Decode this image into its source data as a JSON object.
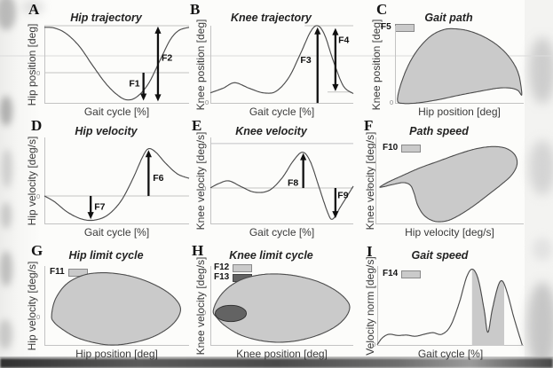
{
  "figure_name": "gait-feature-definition-figure",
  "colors": {
    "fill_light": "#cacaca",
    "fill_dark": "#636363",
    "curve": "#4c4c4c",
    "axis": "#c3c3c3",
    "arrow": "#101010",
    "text": "#3a3a3a"
  },
  "chart_data": {
    "type": "multi-panel-line",
    "grid": "3x3",
    "panels": [
      {
        "id": "A",
        "title": "Hip trajectory",
        "xlabel": "Gait cycle [%]",
        "ylabel": "Hip position [deg]",
        "type": "line",
        "origin": {
          "text": "0",
          "side": "left",
          "y": 0.602
        },
        "lines": [
          [
            0,
            0,
            1,
            0
          ],
          [
            0,
            0.602,
            1,
            0.602
          ]
        ],
        "curve": [
          [
            0,
            0.02
          ],
          [
            0.07,
            0.03
          ],
          [
            0.15,
            0.1
          ],
          [
            0.24,
            0.26
          ],
          [
            0.33,
            0.5
          ],
          [
            0.42,
            0.73
          ],
          [
            0.5,
            0.88
          ],
          [
            0.57,
            0.95
          ],
          [
            0.64,
            0.91
          ],
          [
            0.72,
            0.74
          ],
          [
            0.8,
            0.44
          ],
          [
            0.87,
            0.18
          ],
          [
            0.93,
            0.06
          ],
          [
            1,
            0.02
          ]
        ],
        "annotations": [
          {
            "label": "F1",
            "x": 0.685,
            "y1": 0.602,
            "y2": 0.96,
            "heads": "end",
            "lx": 0.585,
            "ly": 0.78
          },
          {
            "label": "F2",
            "x": 0.785,
            "y1": 0.01,
            "y2": 0.97,
            "heads": "both",
            "lx": 0.81,
            "ly": 0.45
          }
        ],
        "legend": []
      },
      {
        "id": "B",
        "title": "Knee trajectory",
        "xlabel": "Gait cycle [%]",
        "ylabel": "Knee position [deg]",
        "type": "line",
        "origin": {
          "text": "0",
          "side": "bottom"
        },
        "lines": [
          [
            0.66,
            0,
            1,
            0
          ],
          [
            0.82,
            0.85,
            0.99,
            0.85
          ]
        ],
        "curve": [
          [
            0,
            0.86
          ],
          [
            0.09,
            0.8
          ],
          [
            0.17,
            0.73
          ],
          [
            0.27,
            0.8
          ],
          [
            0.37,
            0.86
          ],
          [
            0.46,
            0.84
          ],
          [
            0.55,
            0.66
          ],
          [
            0.63,
            0.36
          ],
          [
            0.7,
            0.08
          ],
          [
            0.75,
            0.0
          ],
          [
            0.8,
            0.12
          ],
          [
            0.86,
            0.45
          ],
          [
            0.93,
            0.77
          ],
          [
            1,
            0.87
          ]
        ],
        "annotations": [
          {
            "label": "F3",
            "x": 0.75,
            "y1": 0.99,
            "y2": 0.02,
            "heads": "end",
            "lx": 0.63,
            "ly": 0.48
          },
          {
            "label": "F4",
            "x": 0.875,
            "y1": 0.03,
            "y2": 0.84,
            "heads": "both",
            "lx": 0.895,
            "ly": 0.22
          }
        ],
        "legend": []
      },
      {
        "id": "C",
        "title": "Gait path",
        "xlabel": "Hip position [deg]",
        "ylabel": "Knee position [deg]",
        "type": "filled-loop",
        "origin": {
          "text": "0",
          "side": "bottom"
        },
        "lines": [],
        "shapes": [
          {
            "kind": "blob",
            "tone": "light",
            "points": [
              [
                0.02,
                0.96
              ],
              [
                0.04,
                0.78
              ],
              [
                0.1,
                0.52
              ],
              [
                0.18,
                0.3
              ],
              [
                0.28,
                0.13
              ],
              [
                0.38,
                0.05
              ],
              [
                0.47,
                0.04
              ],
              [
                0.58,
                0.07
              ],
              [
                0.7,
                0.15
              ],
              [
                0.81,
                0.27
              ],
              [
                0.9,
                0.43
              ],
              [
                0.96,
                0.62
              ],
              [
                0.985,
                0.88
              ],
              [
                0.955,
                0.83
              ],
              [
                0.9,
                0.8
              ],
              [
                0.8,
                0.8
              ],
              [
                0.66,
                0.84
              ],
              [
                0.5,
                0.89
              ],
              [
                0.33,
                0.95
              ],
              [
                0.17,
                0.99
              ],
              [
                0.06,
                0.995
              ]
            ]
          }
        ],
        "annotations": [],
        "legend": [
          {
            "label": "F5",
            "tone": "light"
          }
        ]
      },
      {
        "id": "D",
        "title": "Hip velocity",
        "xlabel": "Gait cycle [%]",
        "ylabel": "Hip velocity [deg/s]",
        "type": "line",
        "origin": {
          "text": "0",
          "side": "left",
          "y": 0.673
        },
        "lines": [
          [
            0,
            0.673,
            1,
            0.673
          ]
        ],
        "curve": [
          [
            0,
            0.673
          ],
          [
            0.07,
            0.74
          ],
          [
            0.16,
            0.86
          ],
          [
            0.26,
            0.94
          ],
          [
            0.35,
            0.95
          ],
          [
            0.44,
            0.89
          ],
          [
            0.53,
            0.73
          ],
          [
            0.61,
            0.48
          ],
          [
            0.68,
            0.22
          ],
          [
            0.72,
            0.13
          ],
          [
            0.77,
            0.17
          ],
          [
            0.84,
            0.3
          ],
          [
            0.92,
            0.42
          ],
          [
            1,
            0.47
          ]
        ],
        "annotations": [
          {
            "label": "F6",
            "x": 0.72,
            "y1": 0.673,
            "y2": 0.145,
            "heads": "end",
            "lx": 0.75,
            "ly": 0.5
          },
          {
            "label": "F7",
            "x": 0.32,
            "y1": 0.673,
            "y2": 0.94,
            "heads": "end",
            "lx": 0.345,
            "ly": 0.83
          }
        ],
        "legend": []
      },
      {
        "id": "E",
        "title": "Knee velocity",
        "xlabel": "Gait cycle [%]",
        "ylabel": "Knee velocity [deg/s]",
        "type": "line",
        "origin": {
          "text": "0",
          "side": "left",
          "y": 0.582
        },
        "lines": [
          [
            0,
            0.07,
            1,
            0.07
          ],
          [
            0,
            0.582,
            1,
            0.582
          ]
        ],
        "curve": [
          [
            0,
            0.58
          ],
          [
            0.06,
            0.53
          ],
          [
            0.13,
            0.5
          ],
          [
            0.22,
            0.57
          ],
          [
            0.31,
            0.63
          ],
          [
            0.41,
            0.61
          ],
          [
            0.5,
            0.47
          ],
          [
            0.58,
            0.27
          ],
          [
            0.645,
            0.17
          ],
          [
            0.7,
            0.28
          ],
          [
            0.76,
            0.57
          ],
          [
            0.82,
            0.86
          ],
          [
            0.855,
            0.94
          ],
          [
            0.91,
            0.8
          ],
          [
            1,
            0.56
          ]
        ],
        "annotations": [
          {
            "label": "F8",
            "x": 0.65,
            "y1": 0.582,
            "y2": 0.18,
            "heads": "end",
            "lx": 0.54,
            "ly": 0.555
          },
          {
            "label": "F9",
            "x": 0.875,
            "y1": 0.582,
            "y2": 0.93,
            "heads": "end",
            "lx": 0.89,
            "ly": 0.7
          }
        ],
        "legend": []
      },
      {
        "id": "F",
        "title": "Path speed",
        "xlabel": "Hip velocity [deg/s]",
        "ylabel": "Knee velocity [deg/s]",
        "type": "filled-loop",
        "origin": {
          "text": "0",
          "side": "left",
          "y": 0.571
        },
        "lines": [],
        "shapes": [
          {
            "kind": "blob",
            "tone": "light",
            "points": [
              [
                0.03,
                0.57
              ],
              [
                0.09,
                0.51
              ],
              [
                0.18,
                0.44
              ],
              [
                0.3,
                0.35
              ],
              [
                0.43,
                0.27
              ],
              [
                0.56,
                0.19
              ],
              [
                0.68,
                0.13
              ],
              [
                0.79,
                0.105
              ],
              [
                0.88,
                0.125
              ],
              [
                0.94,
                0.2
              ],
              [
                0.955,
                0.31
              ],
              [
                0.92,
                0.43
              ],
              [
                0.85,
                0.54
              ],
              [
                0.76,
                0.66
              ],
              [
                0.66,
                0.79
              ],
              [
                0.56,
                0.9
              ],
              [
                0.48,
                0.96
              ],
              [
                0.4,
                0.965
              ],
              [
                0.33,
                0.9
              ],
              [
                0.285,
                0.78
              ],
              [
                0.26,
                0.64
              ],
              [
                0.235,
                0.55
              ],
              [
                0.19,
                0.52
              ],
              [
                0.12,
                0.54
              ],
              [
                0.06,
                0.565
              ]
            ]
          }
        ],
        "annotations": [],
        "legend": [
          {
            "label": "F10",
            "tone": "light"
          }
        ]
      },
      {
        "id": "G",
        "title": "Hip limit cycle",
        "xlabel": "Hip position [deg]",
        "ylabel": "Hip velocity [deg/s]",
        "type": "filled-loop",
        "origin": {
          "text": "0",
          "side": "left",
          "y": 0.633
        },
        "lines": [],
        "shapes": [
          {
            "kind": "blob",
            "tone": "light",
            "points": [
              [
                0.05,
                0.62
              ],
              [
                0.075,
                0.42
              ],
              [
                0.15,
                0.23
              ],
              [
                0.26,
                0.12
              ],
              [
                0.38,
                0.085
              ],
              [
                0.52,
                0.1
              ],
              [
                0.66,
                0.16
              ],
              [
                0.79,
                0.26
              ],
              [
                0.89,
                0.385
              ],
              [
                0.94,
                0.52
              ],
              [
                0.92,
                0.655
              ],
              [
                0.85,
                0.785
              ],
              [
                0.74,
                0.895
              ],
              [
                0.6,
                0.965
              ],
              [
                0.46,
                0.99
              ],
              [
                0.33,
                0.955
              ],
              [
                0.21,
                0.885
              ],
              [
                0.115,
                0.78
              ],
              [
                0.065,
                0.7
              ]
            ]
          }
        ],
        "annotations": [],
        "legend": [
          {
            "label": "F11",
            "tone": "light"
          }
        ]
      },
      {
        "id": "H",
        "title": "Knee limit cycle",
        "xlabel": "Knee position [deg]",
        "ylabel": "Knee velocity [deg/s]",
        "type": "filled-loop",
        "origin": {
          "text": "0",
          "side": "left",
          "y": 0.574
        },
        "lines": [],
        "shapes": [
          {
            "kind": "blob",
            "tone": "light",
            "points": [
              [
                0.02,
                0.565
              ],
              [
                0.055,
                0.41
              ],
              [
                0.125,
                0.27
              ],
              [
                0.225,
                0.165
              ],
              [
                0.35,
                0.11
              ],
              [
                0.48,
                0.1
              ],
              [
                0.62,
                0.13
              ],
              [
                0.76,
                0.2
              ],
              [
                0.875,
                0.305
              ],
              [
                0.95,
                0.42
              ],
              [
                0.975,
                0.52
              ],
              [
                0.945,
                0.645
              ],
              [
                0.87,
                0.765
              ],
              [
                0.755,
                0.865
              ],
              [
                0.61,
                0.935
              ],
              [
                0.465,
                0.955
              ],
              [
                0.325,
                0.925
              ],
              [
                0.2,
                0.855
              ],
              [
                0.1,
                0.745
              ],
              [
                0.045,
                0.645
              ]
            ]
          },
          {
            "kind": "ellipse",
            "tone": "dark",
            "cx": 0.143,
            "cy": 0.594,
            "rx": 0.109,
            "ry": 0.102
          }
        ],
        "annotations": [],
        "legend": [
          {
            "label": "F12",
            "tone": "light"
          },
          {
            "label": "F13",
            "tone": "dark"
          }
        ]
      },
      {
        "id": "I",
        "title": "Gait speed",
        "xlabel": "Gait cycle [%]",
        "ylabel": "Velocity norm [deg/s]",
        "type": "line-area",
        "origin": {
          "text": "0",
          "side": "bottom"
        },
        "lines": [],
        "curve": [
          [
            0,
            0.985
          ],
          [
            0.035,
            0.9
          ],
          [
            0.08,
            0.855
          ],
          [
            0.14,
            0.87
          ],
          [
            0.2,
            0.865
          ],
          [
            0.26,
            0.88
          ],
          [
            0.32,
            0.855
          ],
          [
            0.38,
            0.835
          ],
          [
            0.44,
            0.855
          ],
          [
            0.5,
            0.75
          ],
          [
            0.56,
            0.46
          ],
          [
            0.61,
            0.14
          ],
          [
            0.65,
            0.04
          ],
          [
            0.69,
            0.17
          ],
          [
            0.73,
            0.55
          ],
          [
            0.755,
            0.83
          ],
          [
            0.785,
            0.55
          ],
          [
            0.825,
            0.25
          ],
          [
            0.855,
            0.19
          ],
          [
            0.89,
            0.35
          ],
          [
            0.935,
            0.66
          ],
          [
            0.99,
            0.99
          ]
        ],
        "area": {
          "from": 0.645,
          "to": 0.868
        },
        "annotations": [],
        "legend": [
          {
            "label": "F14",
            "tone": "light"
          }
        ]
      }
    ]
  }
}
